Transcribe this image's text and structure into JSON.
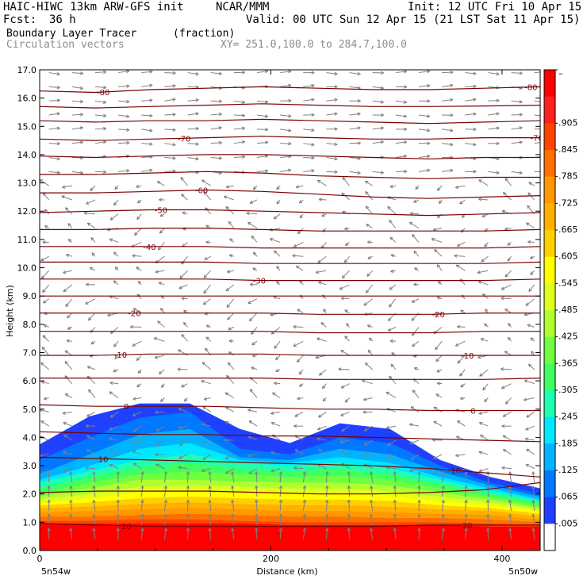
{
  "header": {
    "model": "HAIC-HIWC 13km ARW-GFS init",
    "org": "NCAR/MMM",
    "init": "Init: 12 UTC Fri 10 Apr 15",
    "fcst_label": "Fcst:",
    "fcst_value": "36 h",
    "valid": "Valid: 00 UTC Sun 12 Apr 15 (21 LST Sat 11 Apr 15)",
    "field": "Boundary Layer Tracer",
    "units": "(fraction)",
    "vectors": "Circulation vectors",
    "xy": "XY= 251.0,100.0 to 284.7,100.0"
  },
  "colors": {
    "contour": "#7a0000",
    "vector": "#808080"
  },
  "chart_data": {
    "type": "heatmap",
    "title": "Boundary Layer Tracer",
    "xlabel": "Distance (km)",
    "ylabel": "Height (km)",
    "xlim": [
      0,
      433
    ],
    "ylim": [
      0,
      17
    ],
    "x_ticks": [
      0,
      200,
      400
    ],
    "y_ticks": [
      "0.0",
      "1.0",
      "2.0",
      "3.0",
      "4.0",
      "5.0",
      "6.0",
      "7.0",
      "8.0",
      "9.0",
      "10.0",
      "11.0",
      "12.0",
      "13.0",
      "14.0",
      "15.0",
      "16.0",
      "17.0"
    ],
    "x_left_label": "5n54w",
    "x_right_label": "5n50w",
    "colorbar_labels": [
      "–",
      ".905",
      ".845",
      ".785",
      ".725",
      ".665",
      ".605",
      ".545",
      ".485",
      ".425",
      ".365",
      ".305",
      ".245",
      ".185",
      ".125",
      ".065",
      ".005"
    ],
    "colorbar_colors": [
      "#ff0000",
      "#ff2020",
      "#ff4400",
      "#ff7000",
      "#ff9800",
      "#ffb000",
      "#ffd000",
      "#ffff00",
      "#e0ff20",
      "#b0ff30",
      "#70ff40",
      "#40ff60",
      "#20ffb0",
      "#00e8ff",
      "#00b4ff",
      "#0078ff",
      "#2040ff",
      "#ffffff"
    ],
    "temperature_contours": [
      {
        "label": "-80",
        "y": [
          16.25,
          16.2,
          16.3,
          16.35,
          16.4,
          16.35,
          16.3,
          16.3,
          16.35,
          16.4
        ],
        "label_x": [
          55,
          425
        ]
      },
      {
        "label": "",
        "y": [
          15.7,
          15.65,
          15.7,
          15.75,
          15.8,
          15.75,
          15.7,
          15.7,
          15.72,
          15.75
        ]
      },
      {
        "label": "",
        "y": [
          15.2,
          15.15,
          15.2,
          15.2,
          15.25,
          15.2,
          15.15,
          15.1,
          15.15,
          15.2
        ]
      },
      {
        "label": "-70",
        "y": [
          14.55,
          14.5,
          14.55,
          14.6,
          14.65,
          14.6,
          14.55,
          14.55,
          14.6,
          14.6
        ],
        "label_x": [
          125,
          430
        ]
      },
      {
        "label": "",
        "y": [
          13.95,
          13.9,
          13.95,
          14.0,
          14.0,
          13.95,
          13.9,
          13.85,
          13.9,
          13.9
        ]
      },
      {
        "label": "",
        "y": [
          13.3,
          13.3,
          13.35,
          13.4,
          13.35,
          13.25,
          13.2,
          13.15,
          13.2,
          13.2
        ]
      },
      {
        "label": "-60",
        "y": [
          12.65,
          12.65,
          12.7,
          12.75,
          12.7,
          12.6,
          12.5,
          12.45,
          12.5,
          12.55
        ],
        "label_x": [
          140
        ]
      },
      {
        "label": "-50",
        "y": [
          11.95,
          12.0,
          12.05,
          12.05,
          12.0,
          11.95,
          11.9,
          11.85,
          11.9,
          11.95
        ],
        "label_x": [
          105
        ]
      },
      {
        "label": "",
        "y": [
          11.35,
          11.35,
          11.4,
          11.4,
          11.35,
          11.3,
          11.3,
          11.3,
          11.3,
          11.35
        ]
      },
      {
        "label": "-40",
        "y": [
          10.75,
          10.75,
          10.75,
          10.75,
          10.7,
          10.7,
          10.7,
          10.7,
          10.7,
          10.75
        ],
        "label_x": [
          95
        ]
      },
      {
        "label": "",
        "y": [
          10.2,
          10.2,
          10.2,
          10.2,
          10.15,
          10.15,
          10.15,
          10.15,
          10.15,
          10.2
        ]
      },
      {
        "label": "-30",
        "y": [
          9.6,
          9.6,
          9.6,
          9.6,
          9.55,
          9.55,
          9.55,
          9.55,
          9.55,
          9.6
        ],
        "label_x": [
          190
        ]
      },
      {
        "label": "",
        "y": [
          9.0,
          9.0,
          9.0,
          9.0,
          9.0,
          9.0,
          9.0,
          9.0,
          9.0,
          9.0
        ]
      },
      {
        "label": "-20",
        "y": [
          8.4,
          8.4,
          8.4,
          8.4,
          8.4,
          8.35,
          8.35,
          8.35,
          8.4,
          8.4
        ],
        "label_x": [
          82,
          345
        ]
      },
      {
        "label": "",
        "y": [
          7.75,
          7.75,
          7.75,
          7.75,
          7.75,
          7.7,
          7.7,
          7.7,
          7.75,
          7.75
        ]
      },
      {
        "label": "-10",
        "y": [
          6.9,
          6.9,
          6.95,
          6.95,
          6.95,
          6.9,
          6.9,
          6.9,
          6.9,
          6.9
        ],
        "label_x": [
          70,
          370
        ]
      },
      {
        "label": "",
        "y": [
          6.1,
          6.1,
          6.1,
          6.1,
          6.1,
          6.05,
          6.05,
          6.05,
          6.05,
          6.1
        ]
      },
      {
        "label": "0",
        "y": [
          5.15,
          5.1,
          5.1,
          5.1,
          5.05,
          5.0,
          5.0,
          4.95,
          4.95,
          4.95
        ],
        "label_x": [
          75,
          375
        ]
      },
      {
        "label": "",
        "y": [
          4.2,
          4.15,
          4.1,
          4.1,
          4.05,
          4.05,
          4.0,
          3.95,
          3.9,
          3.85
        ]
      },
      {
        "label": "10",
        "y": [
          3.3,
          3.25,
          3.2,
          3.15,
          3.1,
          3.05,
          3.0,
          2.9,
          2.75,
          2.6
        ],
        "label_x": [
          55,
          360
        ]
      },
      {
        "label": "",
        "y": [
          2.05,
          2.1,
          2.1,
          2.1,
          2.05,
          2.0,
          2.0,
          2.05,
          2.15,
          2.4
        ]
      },
      {
        "label": "20",
        "y": [
          0.95,
          0.9,
          0.85,
          0.85,
          0.85,
          0.85,
          0.85,
          0.9,
          0.9,
          0.9
        ],
        "label_x": [
          75,
          370
        ]
      }
    ],
    "tracer_bands": [
      {
        "value": 0.005,
        "color": "#2040ff",
        "top": [
          3.75,
          4.75,
          5.2,
          5.2,
          4.3,
          3.8,
          4.5,
          4.3,
          3.2,
          2.6,
          2.2
        ],
        "bottom": 0
      },
      {
        "value": 0.065,
        "color": "#0078ff",
        "top": [
          3.2,
          4.0,
          4.7,
          4.9,
          3.6,
          3.4,
          4.0,
          3.8,
          3.0,
          2.4,
          2.0
        ],
        "bottom": 0
      },
      {
        "value": 0.125,
        "color": "#00b4ff",
        "top": [
          2.7,
          3.4,
          4.1,
          4.3,
          3.3,
          3.2,
          3.6,
          3.4,
          2.8,
          2.3,
          1.9
        ],
        "bottom": 0
      },
      {
        "value": 0.185,
        "color": "#00e8ff",
        "top": [
          2.5,
          3.0,
          3.6,
          3.8,
          3.2,
          3.1,
          3.3,
          3.1,
          2.6,
          2.2,
          1.8
        ],
        "bottom": 0
      },
      {
        "value": 0.245,
        "color": "#20ffb0",
        "top": [
          2.4,
          2.8,
          3.2,
          3.4,
          3.1,
          3.0,
          3.1,
          2.9,
          2.5,
          2.1,
          1.75
        ],
        "bottom": 0
      },
      {
        "value": 0.305,
        "color": "#40ff60",
        "top": [
          2.2,
          2.6,
          2.95,
          3.1,
          2.9,
          2.8,
          2.9,
          2.7,
          2.35,
          2.0,
          1.7
        ],
        "bottom": 0
      },
      {
        "value": 0.365,
        "color": "#70ff40",
        "top": [
          2.0,
          2.4,
          2.7,
          2.8,
          2.7,
          2.6,
          2.65,
          2.5,
          2.2,
          1.9,
          1.6
        ],
        "bottom": 0
      },
      {
        "value": 0.425,
        "color": "#b0ff30",
        "top": [
          1.9,
          2.2,
          2.5,
          2.5,
          2.45,
          2.4,
          2.4,
          2.3,
          2.05,
          1.8,
          1.5
        ],
        "bottom": 0
      },
      {
        "value": 0.485,
        "color": "#e0ff20",
        "top": [
          1.8,
          2.0,
          2.25,
          2.3,
          2.25,
          2.2,
          2.2,
          2.1,
          1.9,
          1.7,
          1.45
        ],
        "bottom": 0
      },
      {
        "value": 0.545,
        "color": "#ffff00",
        "top": [
          1.7,
          1.85,
          2.05,
          2.1,
          2.05,
          2.0,
          2.0,
          1.95,
          1.75,
          1.6,
          1.4
        ],
        "bottom": 0
      },
      {
        "value": 0.605,
        "color": "#ffd000",
        "top": [
          1.6,
          1.7,
          1.85,
          1.9,
          1.85,
          1.8,
          1.8,
          1.75,
          1.6,
          1.5,
          1.3
        ],
        "bottom": 0
      },
      {
        "value": 0.665,
        "color": "#ffb000",
        "top": [
          1.5,
          1.55,
          1.65,
          1.7,
          1.65,
          1.6,
          1.6,
          1.55,
          1.45,
          1.4,
          1.2
        ],
        "bottom": 0
      },
      {
        "value": 0.725,
        "color": "#ff9800",
        "top": [
          1.35,
          1.4,
          1.45,
          1.5,
          1.45,
          1.4,
          1.4,
          1.35,
          1.3,
          1.25,
          1.1
        ],
        "bottom": 0
      },
      {
        "value": 0.785,
        "color": "#ff7000",
        "top": [
          1.2,
          1.2,
          1.25,
          1.3,
          1.25,
          1.2,
          1.2,
          1.15,
          1.15,
          1.1,
          1.0
        ],
        "bottom": 0
      },
      {
        "value": 0.845,
        "color": "#ff4400",
        "top": [
          1.05,
          1.05,
          1.1,
          1.1,
          1.05,
          1.0,
          1.0,
          1.0,
          1.0,
          0.95,
          0.9
        ],
        "bottom": 0
      },
      {
        "value": 0.905,
        "color": "#ff0000",
        "top": [
          0.95,
          0.95,
          0.95,
          0.95,
          0.95,
          0.9,
          0.9,
          0.9,
          0.9,
          0.85,
          0.85
        ],
        "bottom": 0
      }
    ]
  }
}
